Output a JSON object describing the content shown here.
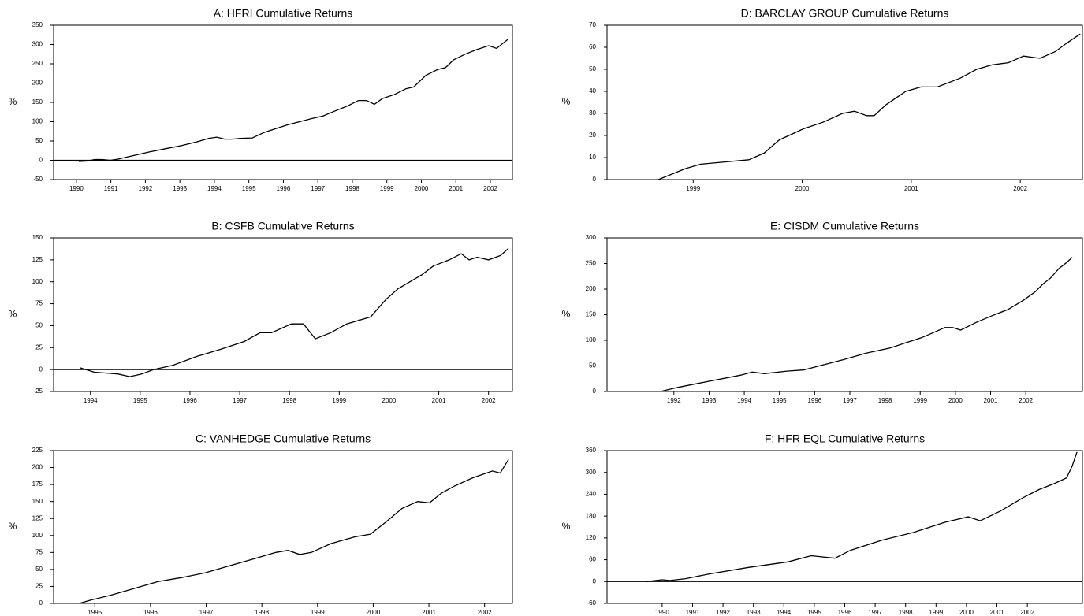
{
  "chart_data": [
    {
      "type": "line",
      "title": "A: HFRI Cumulative Returns",
      "ylabel": "%",
      "color": "#000000",
      "x": [
        1990.07,
        1990.3,
        1990.53,
        1990.75,
        1990.98,
        1991.21,
        1991.44,
        1991.78,
        1992.13,
        1992.58,
        1993.04,
        1993.5,
        1993.84,
        1994.07,
        1994.3,
        1994.53,
        1994.75,
        1995.1,
        1995.44,
        1995.78,
        1996.13,
        1996.47,
        1996.81,
        1997.15,
        1997.5,
        1997.84,
        1998.18,
        1998.41,
        1998.64,
        1998.87,
        1999.21,
        1999.55,
        1999.78,
        2000.13,
        2000.47,
        2000.7,
        2000.93,
        2001.27,
        2001.61,
        2001.95,
        2002.18,
        2002.53
      ],
      "values": [
        -3,
        -2,
        2,
        2,
        0,
        3,
        8,
        15,
        22,
        30,
        38,
        48,
        57,
        60,
        55,
        55,
        57,
        58,
        72,
        82,
        92,
        100,
        108,
        115,
        128,
        140,
        155,
        155,
        145,
        160,
        170,
        185,
        190,
        220,
        235,
        240,
        260,
        275,
        287,
        297,
        290,
        315
      ],
      "xlim": [
        1989.34,
        2002.64
      ],
      "xticks": [
        1990,
        1991,
        1992,
        1993,
        1994,
        1995,
        1996,
        1997,
        1998,
        1999,
        2000,
        2001,
        2002
      ],
      "ylim": [
        -50,
        350
      ],
      "yticks": [
        -50,
        0,
        50,
        100,
        150,
        200,
        250,
        300,
        350
      ]
    },
    {
      "type": "line",
      "title": "B: CSFB Cumulative Returns",
      "ylabel": "%",
      "color": "#000000",
      "x": [
        1993.79,
        1994.08,
        1994.55,
        1994.79,
        1995.03,
        1995.27,
        1995.66,
        1996.14,
        1996.61,
        1997.09,
        1997.41,
        1997.64,
        1998.04,
        1998.28,
        1998.52,
        1998.83,
        1999.15,
        1999.63,
        1999.94,
        2000.18,
        2000.42,
        2000.66,
        2000.89,
        2001.21,
        2001.45,
        2001.61,
        2001.77,
        2002.0,
        2002.24,
        2002.4
      ],
      "values": [
        2,
        -3,
        -5,
        -8,
        -5,
        0,
        5,
        15,
        23,
        32,
        42,
        42,
        52,
        52,
        35,
        42,
        52,
        60,
        80,
        92,
        100,
        108,
        118,
        125,
        132,
        125,
        128,
        125,
        130,
        138
      ],
      "xlim": [
        1993.26,
        2002.48
      ],
      "xticks": [
        1994,
        1995,
        1996,
        1997,
        1998,
        1999,
        2000,
        2001,
        2002
      ],
      "ylim": [
        -25,
        150
      ],
      "yticks": [
        -25,
        0,
        25,
        50,
        75,
        100,
        125,
        150
      ]
    },
    {
      "type": "line",
      "title": "C: VANHEDGE Cumulative Returns",
      "ylabel": "%",
      "color": "#000000",
      "x": [
        1994.72,
        1994.93,
        1995.28,
        1995.71,
        1996.13,
        1996.56,
        1996.98,
        1997.4,
        1997.83,
        1998.25,
        1998.47,
        1998.68,
        1998.89,
        1999.24,
        1999.67,
        1999.95,
        2000.23,
        2000.52,
        2000.8,
        2001.01,
        2001.22,
        2001.44,
        2001.79,
        2002.14,
        2002.28,
        2002.43
      ],
      "values": [
        0,
        5,
        12,
        22,
        32,
        38,
        45,
        55,
        65,
        75,
        78,
        72,
        75,
        88,
        98,
        102,
        120,
        140,
        150,
        148,
        162,
        172,
        185,
        195,
        192,
        212
      ],
      "xlim": [
        1994.26,
        2002.5
      ],
      "xticks": [
        1995,
        1996,
        1997,
        1998,
        1999,
        2000,
        2001,
        2002
      ],
      "ylim": [
        0,
        225
      ],
      "yticks": [
        0,
        25,
        50,
        75,
        100,
        125,
        150,
        175,
        200,
        225
      ]
    },
    {
      "type": "line",
      "title": "D: BARCLAY GROUP Cumulative Returns",
      "ylabel": "%",
      "color": "#000000",
      "x": [
        1998.68,
        1998.93,
        1999.07,
        1999.29,
        1999.51,
        1999.65,
        1999.79,
        2000.01,
        2000.19,
        2000.37,
        2000.48,
        2000.59,
        2000.66,
        2000.77,
        2000.95,
        2001.09,
        2001.24,
        2001.45,
        2001.6,
        2001.74,
        2001.89,
        2002.03,
        2002.18,
        2002.32,
        2002.43,
        2002.55
      ],
      "values": [
        0,
        5,
        7,
        8,
        9,
        12,
        18,
        23,
        26,
        30,
        31,
        29,
        29,
        34,
        40,
        42,
        42,
        46,
        50,
        52,
        53,
        56,
        55,
        58,
        62,
        66
      ],
      "xlim": [
        1998.21,
        2002.57
      ],
      "xticks": [
        1999,
        2000,
        2001,
        2002
      ],
      "ylim": [
        0,
        70
      ],
      "yticks": [
        0,
        10,
        20,
        30,
        40,
        50,
        60,
        70
      ]
    },
    {
      "type": "line",
      "title": "E: CISDM Cumulative Returns",
      "ylabel": "%",
      "color": "#000000",
      "x": [
        1991.62,
        1992.11,
        1993.0,
        1993.9,
        1994.23,
        1994.57,
        1995.24,
        1995.68,
        1996.13,
        1996.8,
        1997.47,
        1998.14,
        1998.58,
        1999.03,
        1999.37,
        1999.7,
        1999.92,
        2000.15,
        2000.59,
        2001.04,
        2001.49,
        2001.93,
        2002.27,
        2002.49,
        2002.71,
        2002.94,
        2003.16,
        2003.32
      ],
      "values": [
        0,
        8,
        20,
        32,
        38,
        35,
        40,
        42,
        50,
        62,
        75,
        85,
        95,
        105,
        115,
        125,
        125,
        120,
        135,
        148,
        160,
        178,
        195,
        210,
        222,
        240,
        252,
        262
      ],
      "xlim": [
        1990.1,
        2003.61
      ],
      "xticks": [
        1992,
        1993,
        1994,
        1995,
        1996,
        1997,
        1998,
        1999,
        2000,
        2001,
        2002
      ],
      "ylim": [
        0,
        300
      ],
      "yticks": [
        0,
        50,
        100,
        150,
        200,
        250,
        300
      ]
    },
    {
      "type": "line",
      "title": "F: HFR EQL Cumulative Returns",
      "ylabel": "%",
      "color": "#000000",
      "x": [
        1989.48,
        1990.0,
        1990.26,
        1990.77,
        1991.55,
        1992.84,
        1994.13,
        1994.9,
        1995.68,
        1996.19,
        1997.23,
        1998.26,
        1999.29,
        2000.06,
        2000.45,
        2001.1,
        2001.87,
        2002.39,
        2002.9,
        2003.29,
        2003.47,
        2003.63
      ],
      "values": [
        0,
        5,
        3,
        8,
        21,
        39,
        54,
        71,
        64,
        86,
        114,
        135,
        163,
        178,
        167,
        193,
        231,
        253,
        270,
        285,
        317,
        356
      ],
      "xlim": [
        1988.19,
        2003.81
      ],
      "xticks": [
        1990,
        1991,
        1992,
        1993,
        1994,
        1995,
        1996,
        1997,
        1998,
        1999,
        2000,
        2001,
        2002
      ],
      "ylim": [
        -60,
        360
      ],
      "yticks": [
        -60,
        0,
        60,
        120,
        180,
        240,
        300,
        360
      ]
    }
  ]
}
